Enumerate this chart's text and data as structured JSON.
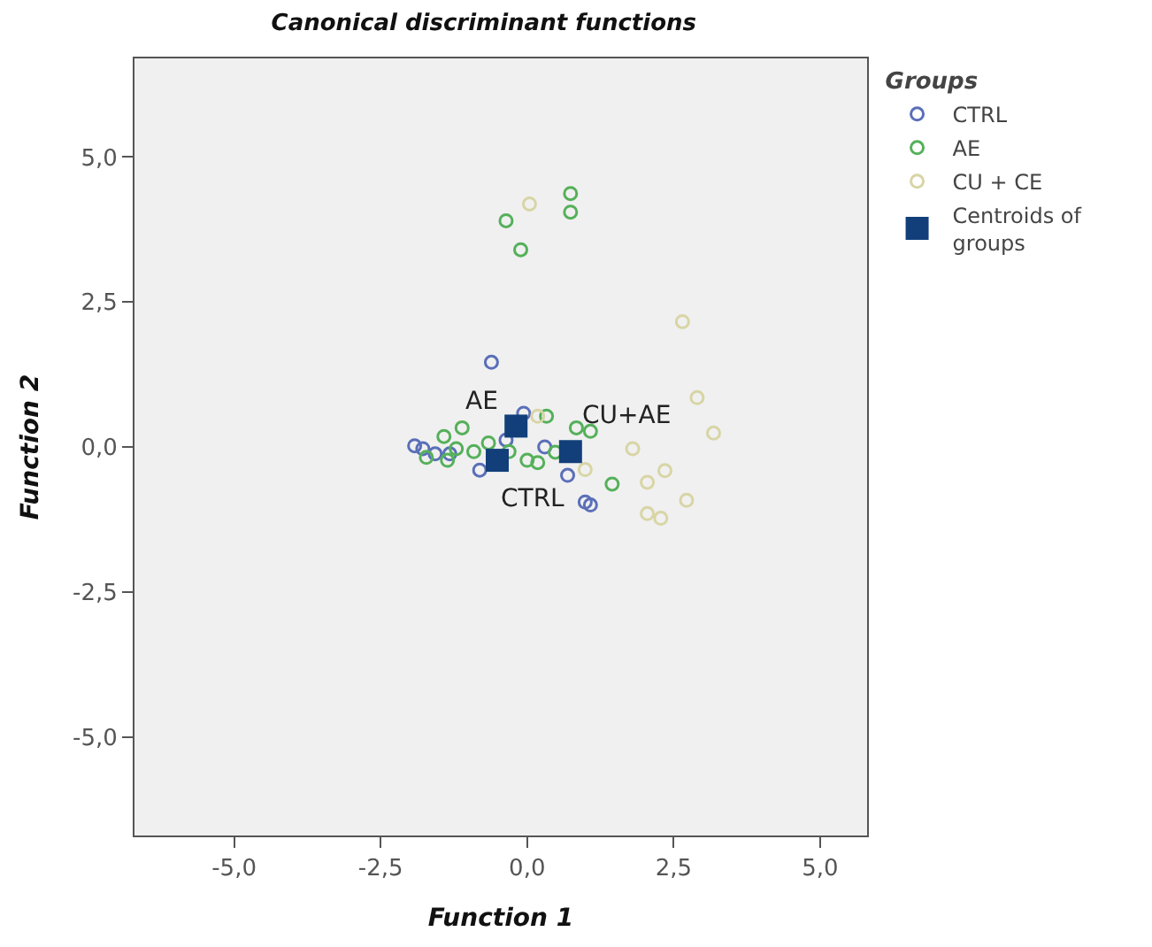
{
  "chart_data": {
    "type": "scatter",
    "title": "Canonical discriminant functions",
    "xlabel": "Function 1",
    "ylabel": "Function 2",
    "legend_title": "Groups",
    "xlim": [
      -6.7,
      5.8
    ],
    "ylim": [
      -6.7,
      6.7
    ],
    "xticks": [
      {
        "value": -5,
        "label": "-5,0"
      },
      {
        "value": -2.5,
        "label": "-2,5"
      },
      {
        "value": 0,
        "label": "0,0"
      },
      {
        "value": 2.5,
        "label": "2,5"
      },
      {
        "value": 5,
        "label": "5,0"
      }
    ],
    "yticks": [
      {
        "value": -5,
        "label": "-5,0"
      },
      {
        "value": -2.5,
        "label": "-2,5"
      },
      {
        "value": 0,
        "label": "0,0"
      },
      {
        "value": 2.5,
        "label": "2,5"
      },
      {
        "value": 5,
        "label": "5,0"
      }
    ],
    "grid": false,
    "legend": "right",
    "marker": "circle",
    "series": [
      {
        "name": "CTRL",
        "color": "#5a6fb8",
        "x": [
          -0.61,
          -1.92,
          -1.78,
          -1.57,
          -1.32,
          -0.81,
          -0.36,
          -0.06,
          0.3,
          0.69,
          1.08,
          0.99
        ],
        "values": [
          1.46,
          0.02,
          -0.03,
          -0.12,
          -0.12,
          -0.4,
          0.12,
          0.58,
          0,
          -0.49,
          -1.0,
          -0.95
        ]
      },
      {
        "name": "AE",
        "color": "#55b05a",
        "x": [
          0.74,
          0.74,
          -0.36,
          -0.11,
          -1.11,
          -1.42,
          -1.21,
          -0.91,
          -0.66,
          -0.31,
          0,
          0.18,
          0.48,
          0.84,
          1.08,
          1.45,
          -1.72,
          -1.36,
          0.33
        ],
        "values": [
          4.37,
          4.05,
          3.9,
          3.4,
          0.33,
          0.18,
          -0.03,
          -0.08,
          0.07,
          -0.08,
          -0.23,
          -0.27,
          -0.09,
          0.33,
          0.27,
          -0.64,
          -0.18,
          -0.23,
          0.53
        ]
      },
      {
        "name": "CU + CE",
        "color": "#d8d5a6",
        "x": [
          0.04,
          2.65,
          2.9,
          3.18,
          2.35,
          2.05,
          2.72,
          2.05,
          2.28,
          1.8,
          0.18,
          0.99
        ],
        "values": [
          4.19,
          2.16,
          0.85,
          0.24,
          -0.41,
          -0.61,
          -0.92,
          -1.15,
          -1.23,
          -0.03,
          0.53,
          -0.39
        ]
      },
      {
        "name": "Centroids of groups",
        "color": "#123f7a",
        "marker": "square",
        "x": [
          -0.19,
          -0.51,
          0.74
        ],
        "values": [
          0.36,
          -0.23,
          -0.08
        ]
      }
    ],
    "annotations": [
      {
        "text": "AE",
        "x": -0.19,
        "y": 0.36
      },
      {
        "text": "CTRL",
        "x": -0.51,
        "y": -0.23
      },
      {
        "text": "CU+AE",
        "x": 0.74,
        "y": -0.08
      }
    ]
  }
}
